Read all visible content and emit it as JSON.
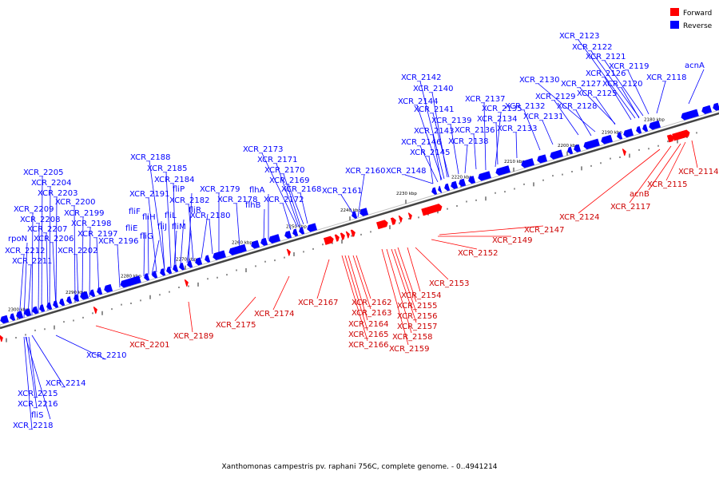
{
  "legend": {
    "forward": {
      "label": "Forward",
      "color": "#ff0000"
    },
    "reverse": {
      "label": "Reverse",
      "color": "#0000ff"
    }
  },
  "caption": "Xanthomonas campestris pv. raphani 756C, complete genome. - 0..4941214",
  "ticks": [
    "2180 kbp",
    "2190 kbp",
    "2200 kbp",
    "2210 kbp",
    "2220 kbp",
    "2230 kbp",
    "2240 kbp",
    "2250 kbp",
    "2260 kbp",
    "2270 kbp",
    "2280 kbp",
    "2290 kbp",
    "2300 kbp"
  ],
  "reverse_labels": [
    "XCR_2123",
    "XCR_2122",
    "XCR_2121",
    "XCR_2119",
    "acnA",
    "XCR_2126",
    "XCR_2130",
    "XCR_2127",
    "XCR_2120",
    "XCR_2118",
    "XCR_2129",
    "XCR_2125",
    "XCR_2142",
    "XCR_2140",
    "XCR_2144",
    "XCR_2137",
    "XCR_2132",
    "XCR_2128",
    "XCR_2141",
    "XCR_2135",
    "XCR_2131",
    "XCR_2139",
    "XCR_2134",
    "XCR_2143",
    "XCR_2136",
    "XCR_2133",
    "XCR_2146",
    "XCR_2138",
    "XCR_2145",
    "XCR_2173",
    "XCR_2188",
    "XCR_2171",
    "XCR_2185",
    "XCR_2170",
    "XCR_2160",
    "XCR_2148",
    "XCR_2205",
    "XCR_2184",
    "XCR_2169",
    "XCR_2204",
    "fliP",
    "XCR_2179",
    "XCR_2168",
    "XCR_2161",
    "XCR_2203",
    "XCR_2191",
    "XCR_2182",
    "flhA",
    "XCR_2178",
    "XCR_2172",
    "XCR_2200",
    "fliF",
    "fliR",
    "flhB",
    "XCR_2209",
    "XCR_2199",
    "fliH",
    "fliL",
    "XCR_2180",
    "XCR_2208",
    "XCR_2198",
    "fliE",
    "fliJ",
    "fliM",
    "XCR_2207",
    "XCR_2197",
    "fliG",
    "rpoN",
    "XCR_2206",
    "XCR_2196",
    "XCR_2212",
    "XCR_2202",
    "XCR_2211",
    "XCR_2210",
    "XCR_2214",
    "XCR_2215",
    "XCR_2216",
    "fliS",
    "XCR_2218"
  ],
  "forward_labels": [
    "XCR_2114",
    "XCR_2115",
    "acnB",
    "XCR_2117",
    "XCR_2124",
    "XCR_2147",
    "XCR_2149",
    "XCR_2152",
    "XCR_2153",
    "XCR_2154",
    "XCR_2155",
    "XCR_2156",
    "XCR_2157",
    "XCR_2158",
    "XCR_2159",
    "XCR_2162",
    "XCR_2163",
    "XCR_2164",
    "XCR_2165",
    "XCR_2166",
    "XCR_2167",
    "XCR_2174",
    "XCR_2175",
    "XCR_2189",
    "XCR_2201"
  ]
}
